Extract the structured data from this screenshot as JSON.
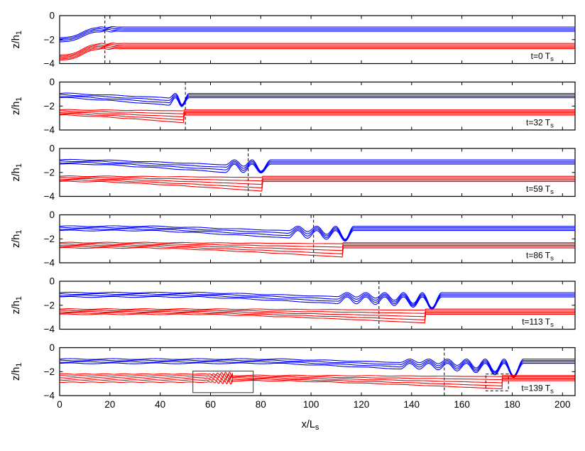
{
  "figure": {
    "background": "#ffffff",
    "frame_color": "#000000",
    "upper_interface_color": "#0000ff",
    "lower_interface_color": "#ff0000",
    "dashed_marker_color": "#000000"
  },
  "axes": {
    "x_label": {
      "main": "x/L",
      "sub": "s"
    },
    "y_label": {
      "main": "z/h",
      "sub": "1"
    },
    "x_range": [
      0,
      205
    ],
    "y_range": [
      -4,
      0
    ],
    "x_ticks": [
      0,
      20,
      40,
      60,
      80,
      100,
      120,
      140,
      160,
      180,
      200
    ],
    "y_ticks": [
      0,
      -2,
      -4
    ],
    "y_tick_labels": [
      "0",
      "−2",
      "−4"
    ]
  },
  "chart_data": {
    "type": "line",
    "title": "",
    "n_panels": 6,
    "times": [
      0,
      32,
      59,
      86,
      113,
      139
    ],
    "upper_interface_rest_levels": [
      -0.95,
      -1.07,
      -1.19,
      -1.31
    ],
    "lower_interface_rest_levels": [
      -2.32,
      -2.43,
      -2.54,
      -2.65,
      -2.76
    ],
    "lower_interface_fan_depths": [
      0.1,
      0.28,
      0.46,
      0.64,
      0.8
    ],
    "panels": [
      {
        "type": "initial",
        "time": 0,
        "time_label": {
          "main": "t=0 T",
          "sub": "s"
        },
        "dashed_x": 18,
        "upper_start_levels": [
          -1.85,
          -1.96,
          -2.07,
          -2.2
        ],
        "lower_start_levels": [
          -3.3,
          -3.4,
          -3.5,
          -3.62,
          -3.72
        ],
        "ramp_center": 9,
        "ramp_halfwidth": 4.2,
        "ripple_center": 19,
        "ripple_amp": 0.055
      },
      {
        "type": "bore",
        "time": 32,
        "time_label": {
          "main": "t=32 T",
          "sub": "s"
        },
        "dashed_x": 50,
        "fan_start": 2,
        "packet_start": 43.5,
        "wave_length": 5,
        "lead_trough_x": 48.5,
        "lead_trough_z": -2.05,
        "front_x": 49.5,
        "flat_x": 51.5,
        "upper_drop": 0.5,
        "fan_scale": 0.8
      },
      {
        "type": "bore",
        "time": 59,
        "time_label": {
          "main": "t=59 T",
          "sub": "s"
        },
        "dashed_x": 75,
        "fan_start": 12,
        "packet_start": 66,
        "wave_length": 7,
        "lead_trough_x": 80,
        "lead_trough_z": -2.05,
        "front_x": 80.5,
        "flat_x": 84,
        "upper_drop": 0.55,
        "fan_scale": 1.0
      },
      {
        "type": "bore",
        "time": 86,
        "time_label": {
          "main": "t=86 T",
          "sub": "s"
        },
        "dashed_x": 101,
        "fan_start": 35,
        "packet_start": 91,
        "wave_length": 7.5,
        "lead_trough_x": 113.5,
        "lead_trough_z": -2.2,
        "front_x": 112.5,
        "flat_x": 117,
        "upper_drop": 0.5,
        "fan_scale": 0.95
      },
      {
        "type": "bore",
        "time": 113,
        "time_label": {
          "main": "t=113 T",
          "sub": "s"
        },
        "dashed_x": 127,
        "fan_start": 55,
        "packet_start": 110.5,
        "wave_length": 7.5,
        "lead_trough_x": 148,
        "lead_trough_z": -2.35,
        "front_x": 145.5,
        "flat_x": 152,
        "upper_drop": 0.45,
        "fan_scale": 0.9
      },
      {
        "type": "bore",
        "time": 139,
        "time_label": {
          "main": "t=139 T",
          "sub": "s"
        },
        "dashed_x": 153,
        "fan_start": 85,
        "packet_start": 135.5,
        "wave_length": 7.5,
        "lead_trough_x": 180.5,
        "lead_trough_z": -2.5,
        "front_x": 176,
        "flat_x": 184.5,
        "upper_drop": 0.38,
        "fan_scale": 0.85,
        "inset_box": {
          "x0": 53,
          "x1": 77,
          "z0": -1.95,
          "z1": -3.75
        },
        "front_box": {
          "x0": 169.5,
          "x1": 178.5,
          "z0": -2.2,
          "z1": -3.6
        },
        "secondary_packet": {
          "x0": 56,
          "x1": 68.7,
          "wave_length": 1.6,
          "max_amp": 0.2,
          "pre_levels": [
            -2.2,
            -2.35,
            -2.52,
            -2.7,
            -2.88
          ]
        }
      }
    ]
  }
}
